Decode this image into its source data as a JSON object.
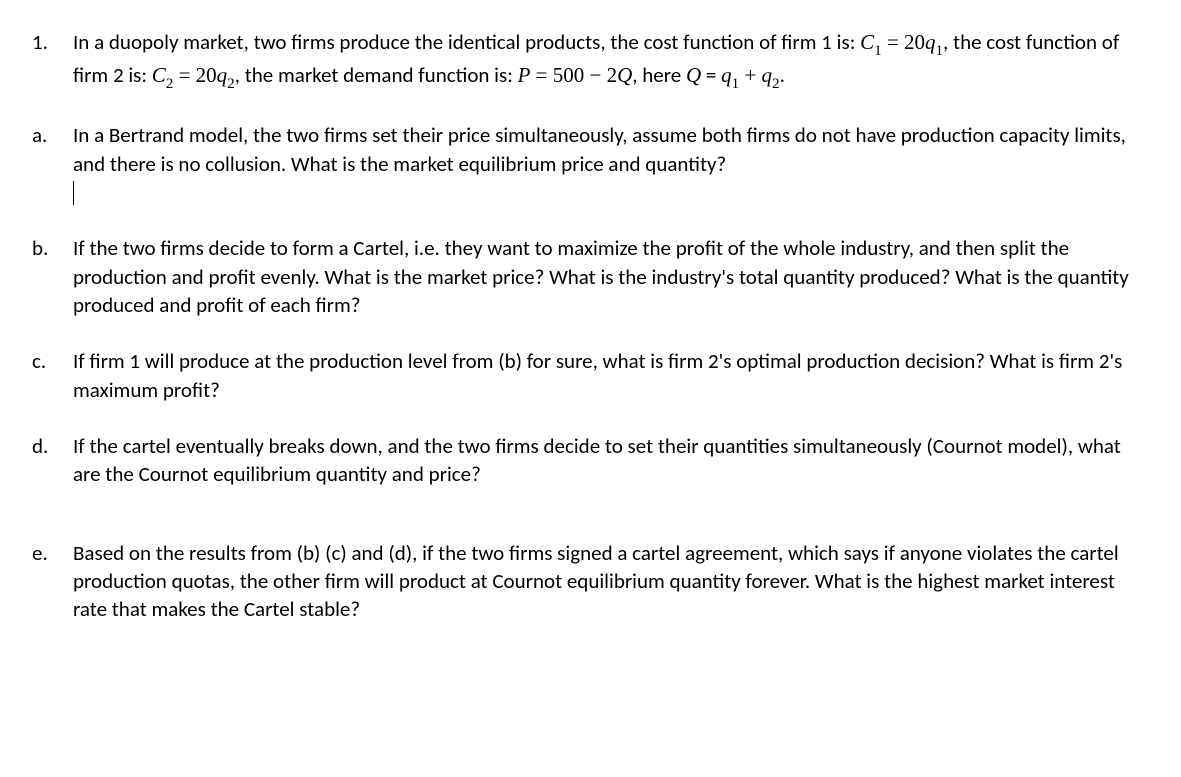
{
  "background_color": "#ffffff",
  "text_color": "#000000",
  "font_size_pt": 16,
  "line_height": 1.35,
  "question_number": "1.",
  "question_main": {
    "prefix": "In a duopoly market, two firms produce the identical products, the cost function of firm 1 is: ",
    "eq1_lhs": "C",
    "eq1_sub": "1",
    "eq1_eq": " = ",
    "eq1_rhs_coef": "20",
    "eq1_rhs_var": "q",
    "eq1_rhs_sub": "1",
    "mid1": ", the cost function of firm 2 is: ",
    "eq2_lhs": "C",
    "eq2_sub": "2",
    "eq2_eq": " = ",
    "eq2_rhs_coef": "20",
    "eq2_rhs_var": "q",
    "eq2_rhs_sub": "2",
    "mid2": ", the market demand function is: ",
    "eq3_lhs": "P",
    "eq3_eq": " = ",
    "eq3_rhs1": "500",
    "eq3_op": " − ",
    "eq3_rhs2_coef": "2",
    "eq3_rhs2_var": "Q",
    "mid3": ", here ",
    "eq4_lhs": "Q",
    "eq4_text_eq": " = ",
    "eq4_v1": "q",
    "eq4_s1": "1",
    "eq4_op": " + ",
    "eq4_v2": "q",
    "eq4_s2": "2",
    "suffix": "."
  },
  "parts": {
    "a": {
      "label": "a.",
      "text": "In a Bertrand model, the two firms set their price simultaneously, assume both firms do not have production capacity limits, and there is no collusion. What is the market equilibrium price and quantity?"
    },
    "b": {
      "label": "b.",
      "text": "If the two firms decide to form a Cartel, i.e. they want to maximize the profit of the whole industry, and then split the production and profit evenly. What is the market price? What is the industry's total quantity produced? What is the quantity produced and profit of each firm?"
    },
    "c": {
      "label": "c.",
      "text": "If firm 1 will produce at the production level from (b) for sure, what is firm 2's optimal production decision? What is firm 2's maximum profit?"
    },
    "d": {
      "label": "d.",
      "text": "If the cartel eventually breaks down, and the two firms decide to set their quantities simultaneously (Cournot model), what are the Cournot equilibrium quantity and price?"
    },
    "e": {
      "label": "e.",
      "text": "Based on the results from (b) (c) and (d), if the two firms signed a cartel agreement, which says if anyone violates the cartel production quotas, the other firm will product at Cournot equilibrium quantity forever. What is the highest market interest rate that makes the Cartel stable?"
    }
  }
}
